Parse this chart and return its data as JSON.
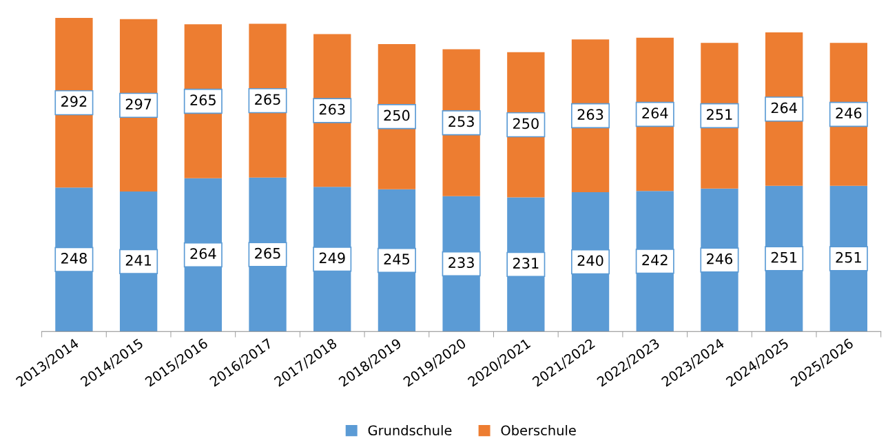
{
  "chart_data": {
    "type": "bar",
    "stacked": true,
    "data_labels": true,
    "legend": "bottom",
    "grid": false,
    "tick_labels": "x",
    "categories": [
      "2013/2014",
      "2014/2015",
      "2015/2016",
      "2016/2017",
      "2017/2018",
      "2018/2019",
      "2019/2020",
      "2020/2021",
      "2021/2022",
      "2022/2023",
      "2023/2024",
      "2024/2025",
      "2025/2026"
    ],
    "series": [
      {
        "name": "Grundschule",
        "color": "#5b9bd5",
        "values": [
          248,
          241,
          264,
          265,
          249,
          245,
          233,
          231,
          240,
          242,
          246,
          251,
          251
        ]
      },
      {
        "name": "Oberschule",
        "color": "#ed7d31",
        "values": [
          292,
          297,
          265,
          265,
          263,
          250,
          253,
          250,
          263,
          264,
          251,
          264,
          246
        ]
      }
    ]
  }
}
